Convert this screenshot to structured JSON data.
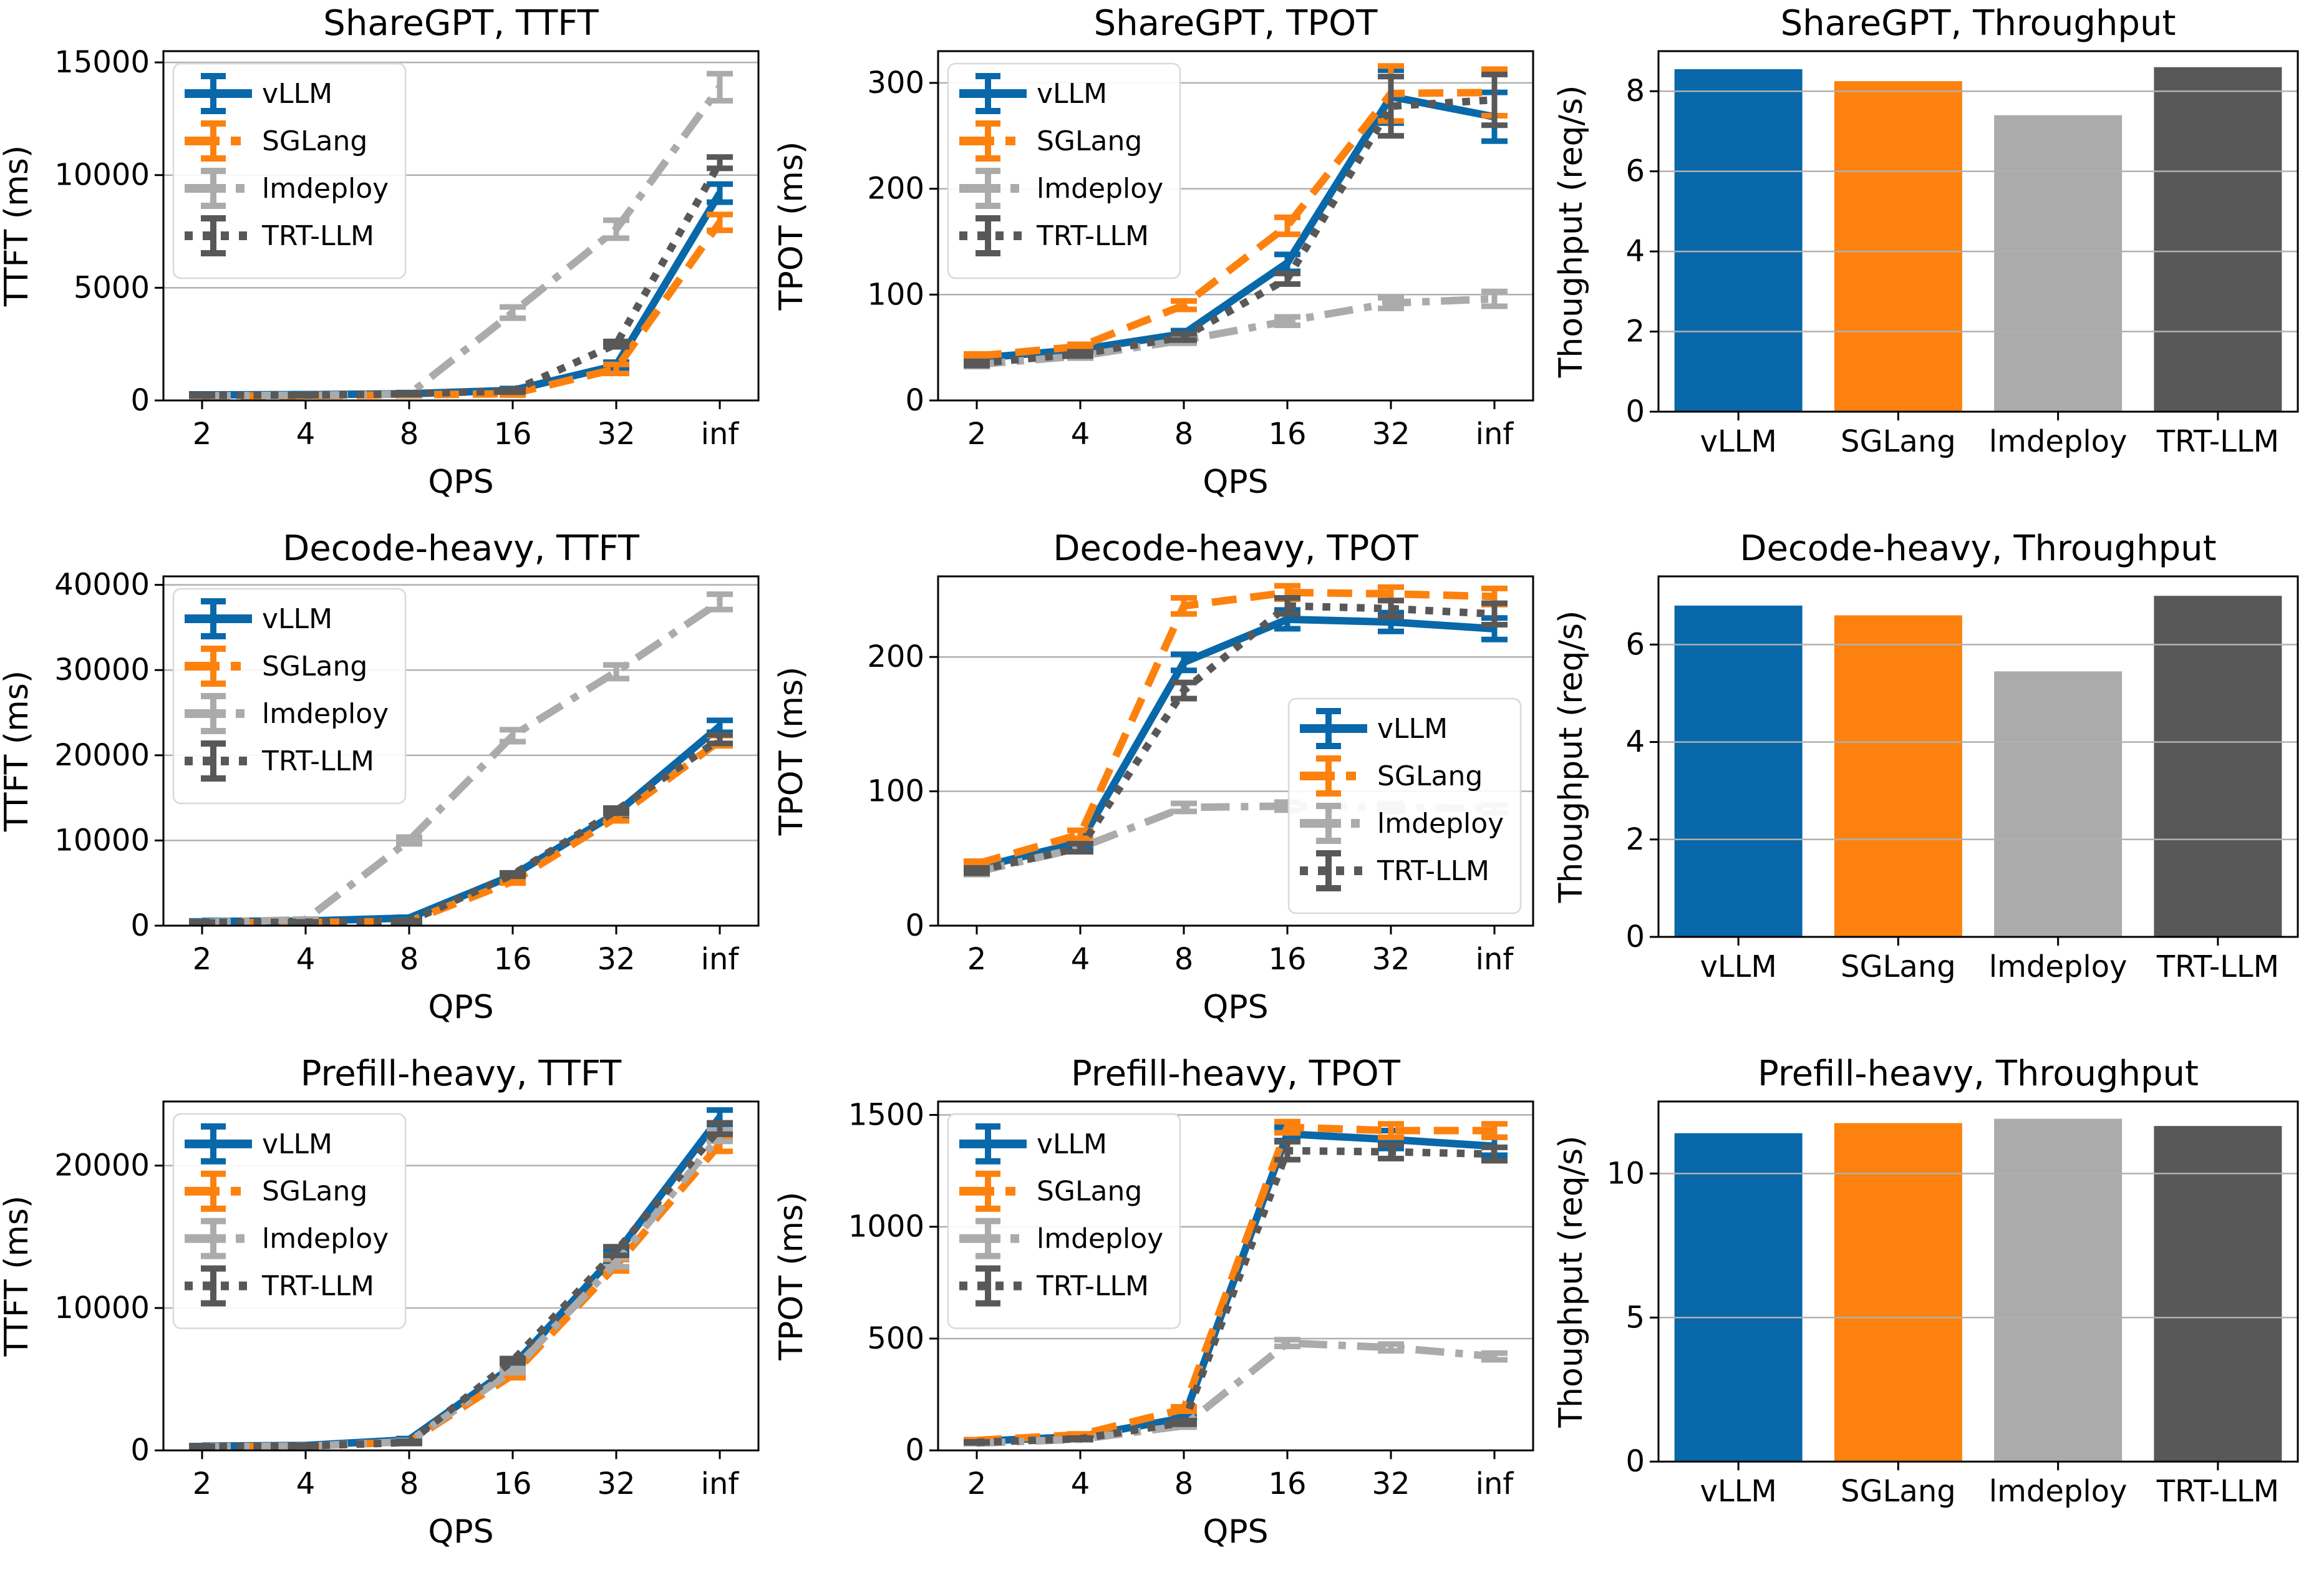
{
  "figure": {
    "background": "#ffffff",
    "x_axis_label": "QPS",
    "x_tick_labels": [
      "2",
      "4",
      "8",
      "16",
      "32",
      "inf"
    ],
    "frameworks": [
      {
        "name": "vLLM",
        "color": "#0868a9",
        "linestyle": "solid"
      },
      {
        "name": "SGLang",
        "color": "#fd810e",
        "linestyle": "dashed"
      },
      {
        "name": "lmdeploy",
        "color": "#ababab",
        "linestyle": "dashdot"
      },
      {
        "name": "TRT-LLM",
        "color": "#585858",
        "linestyle": "dotted"
      }
    ],
    "grid_color": "#b0b0b0",
    "spine_color": "#000000"
  },
  "chart_data": [
    {
      "type": "line",
      "title": "ShareGPT, TTFT",
      "xlabel": "QPS",
      "ylabel": "TTFT (ms)",
      "x": [
        "2",
        "4",
        "8",
        "16",
        "32",
        "inf"
      ],
      "yticks": [
        0,
        5000,
        10000,
        15000
      ],
      "ylim": [
        0,
        15500
      ],
      "grid": true,
      "legend_loc": "upper-left",
      "series": [
        {
          "name": "vLLM",
          "color": "#0868a9",
          "linestyle": "solid",
          "values": [
            250,
            260,
            300,
            450,
            1550,
            9200
          ],
          "err": [
            40,
            40,
            50,
            80,
            150,
            400
          ]
        },
        {
          "name": "SGLang",
          "color": "#fd810e",
          "linestyle": "dashed",
          "values": [
            200,
            210,
            250,
            300,
            1400,
            7900
          ],
          "err": [
            30,
            30,
            40,
            60,
            200,
            350
          ]
        },
        {
          "name": "lmdeploy",
          "color": "#ababab",
          "linestyle": "dashdot",
          "values": [
            210,
            230,
            280,
            3900,
            7600,
            13900
          ],
          "err": [
            30,
            30,
            40,
            250,
            400,
            600
          ]
        },
        {
          "name": "TRT-LLM",
          "color": "#585858",
          "linestyle": "dotted",
          "values": [
            230,
            240,
            300,
            430,
            2500,
            10550
          ],
          "err": [
            30,
            30,
            40,
            60,
            120,
            250
          ]
        }
      ]
    },
    {
      "type": "line",
      "title": "ShareGPT, TPOT",
      "xlabel": "QPS",
      "ylabel": "TPOT (ms)",
      "x": [
        "2",
        "4",
        "8",
        "16",
        "32",
        "inf"
      ],
      "yticks": [
        0,
        100,
        200,
        300
      ],
      "ylim": [
        0,
        330
      ],
      "grid": true,
      "legend_loc": "upper-left",
      "series": [
        {
          "name": "vLLM",
          "color": "#0868a9",
          "linestyle": "solid",
          "values": [
            40,
            48,
            63,
            130,
            287,
            268
          ],
          "err": [
            2,
            2,
            3,
            8,
            25,
            23
          ]
        },
        {
          "name": "SGLang",
          "color": "#fd810e",
          "linestyle": "dashed",
          "values": [
            42,
            51,
            90,
            165,
            290,
            291
          ],
          "err": [
            2,
            2,
            4,
            8,
            26,
            22
          ]
        },
        {
          "name": "lmdeploy",
          "color": "#ababab",
          "linestyle": "dashdot",
          "values": [
            34,
            42,
            57,
            75,
            92,
            96
          ],
          "err": [
            2,
            2,
            3,
            4,
            5,
            7
          ]
        },
        {
          "name": "TRT-LLM",
          "color": "#585858",
          "linestyle": "dotted",
          "values": [
            35,
            44,
            60,
            115,
            278,
            284
          ],
          "err": [
            2,
            2,
            3,
            5,
            28,
            24
          ]
        }
      ]
    },
    {
      "type": "bar",
      "title": "ShareGPT, Throughput",
      "ylabel": "Thoughput (req/s)",
      "categories": [
        "vLLM",
        "SGLang",
        "lmdeploy",
        "TRT-LLM"
      ],
      "values": [
        8.55,
        8.25,
        7.4,
        8.6
      ],
      "bar_colors": [
        "#0868a9",
        "#fd810e",
        "#ababab",
        "#585858"
      ],
      "yticks": [
        0,
        2,
        4,
        6,
        8
      ],
      "ylim": [
        0,
        9
      ],
      "grid": true
    },
    {
      "type": "line",
      "title": "Decode-heavy, TTFT",
      "xlabel": "QPS",
      "ylabel": "TTFT (ms)",
      "x": [
        "2",
        "4",
        "8",
        "16",
        "32",
        "inf"
      ],
      "yticks": [
        0,
        10000,
        20000,
        30000,
        40000
      ],
      "ylim": [
        0,
        41000
      ],
      "grid": true,
      "legend_loc": "upper-left",
      "series": [
        {
          "name": "vLLM",
          "color": "#0868a9",
          "linestyle": "solid",
          "values": [
            500,
            550,
            900,
            5900,
            13200,
            23400
          ],
          "err": [
            60,
            60,
            90,
            200,
            300,
            700
          ]
        },
        {
          "name": "SGLang",
          "color": "#fd810e",
          "linestyle": "dashed",
          "values": [
            350,
            380,
            500,
            5200,
            12700,
            21700
          ],
          "err": [
            50,
            50,
            70,
            200,
            400,
            600
          ]
        },
        {
          "name": "lmdeploy",
          "color": "#ababab",
          "linestyle": "dashdot",
          "values": [
            400,
            700,
            10000,
            22300,
            29800,
            38000
          ],
          "err": [
            50,
            80,
            400,
            700,
            800,
            900
          ]
        },
        {
          "name": "TRT-LLM",
          "color": "#585858",
          "linestyle": "dotted",
          "values": [
            380,
            400,
            520,
            6000,
            13500,
            21900
          ],
          "err": [
            50,
            50,
            70,
            200,
            300,
            500
          ]
        }
      ]
    },
    {
      "type": "line",
      "title": "Decode-heavy, TPOT",
      "xlabel": "QPS",
      "ylabel": "TPOT (ms)",
      "x": [
        "2",
        "4",
        "8",
        "16",
        "32",
        "inf"
      ],
      "yticks": [
        0,
        100,
        200
      ],
      "ylim": [
        0,
        260
      ],
      "grid": true,
      "legend_loc": "center-right",
      "series": [
        {
          "name": "vLLM",
          "color": "#0868a9",
          "linestyle": "solid",
          "values": [
            43,
            62,
            196,
            228,
            226,
            221
          ],
          "err": [
            2,
            3,
            6,
            7,
            7,
            8
          ]
        },
        {
          "name": "SGLang",
          "color": "#fd810e",
          "linestyle": "dashed",
          "values": [
            46,
            68,
            238,
            248,
            247,
            245
          ],
          "err": [
            2,
            3,
            6,
            5,
            5,
            6
          ]
        },
        {
          "name": "lmdeploy",
          "color": "#ababab",
          "linestyle": "dashdot",
          "values": [
            40,
            58,
            88,
            89,
            88,
            87
          ],
          "err": [
            2,
            3,
            3,
            3,
            3,
            3
          ]
        },
        {
          "name": "TRT-LLM",
          "color": "#585858",
          "linestyle": "dotted",
          "values": [
            41,
            58,
            175,
            238,
            236,
            232
          ],
          "err": [
            2,
            3,
            6,
            6,
            6,
            8
          ]
        }
      ]
    },
    {
      "type": "bar",
      "title": "Decode-heavy, Throughput",
      "ylabel": "Thoughput (req/s)",
      "categories": [
        "vLLM",
        "SGLang",
        "lmdeploy",
        "TRT-LLM"
      ],
      "values": [
        6.8,
        6.6,
        5.45,
        7.0
      ],
      "bar_colors": [
        "#0868a9",
        "#fd810e",
        "#ababab",
        "#585858"
      ],
      "yticks": [
        0,
        2,
        4,
        6
      ],
      "ylim": [
        0,
        7.4
      ],
      "grid": true
    },
    {
      "type": "line",
      "title": "Prefill-heavy, TTFT",
      "xlabel": "QPS",
      "ylabel": "TTFT (ms)",
      "x": [
        "2",
        "4",
        "8",
        "16",
        "32",
        "inf"
      ],
      "yticks": [
        0,
        10000,
        20000
      ],
      "ylim": [
        0,
        24500
      ],
      "grid": true,
      "legend_loc": "upper-left",
      "series": [
        {
          "name": "vLLM",
          "color": "#0868a9",
          "linestyle": "solid",
          "values": [
            300,
            350,
            750,
            5900,
            13800,
            23400
          ],
          "err": [
            40,
            40,
            80,
            150,
            300,
            500
          ]
        },
        {
          "name": "SGLang",
          "color": "#fd810e",
          "linestyle": "dashed",
          "values": [
            250,
            300,
            600,
            5300,
            13000,
            21500
          ],
          "err": [
            40,
            40,
            80,
            200,
            400,
            500
          ]
        },
        {
          "name": "lmdeploy",
          "color": "#ababab",
          "linestyle": "dashdot",
          "values": [
            260,
            300,
            620,
            5600,
            13200,
            22100
          ],
          "err": [
            40,
            40,
            80,
            150,
            300,
            400
          ]
        },
        {
          "name": "TRT-LLM",
          "color": "#585858",
          "linestyle": "dotted",
          "values": [
            260,
            310,
            560,
            6300,
            14000,
            22600
          ],
          "err": [
            40,
            40,
            80,
            150,
            300,
            400
          ]
        }
      ]
    },
    {
      "type": "line",
      "title": "Prefill-heavy, TPOT",
      "xlabel": "QPS",
      "ylabel": "TPOT (ms)",
      "x": [
        "2",
        "4",
        "8",
        "16",
        "32",
        "inf"
      ],
      "yticks": [
        0,
        500,
        1000,
        1500
      ],
      "ylim": [
        0,
        1560
      ],
      "grid": true,
      "legend_loc": "upper-left",
      "series": [
        {
          "name": "vLLM",
          "color": "#0868a9",
          "linestyle": "solid",
          "values": [
            40,
            62,
            145,
            1415,
            1390,
            1360
          ],
          "err": [
            3,
            4,
            8,
            30,
            40,
            40
          ]
        },
        {
          "name": "SGLang",
          "color": "#fd810e",
          "linestyle": "dashed",
          "values": [
            45,
            70,
            185,
            1445,
            1430,
            1430
          ],
          "err": [
            3,
            4,
            10,
            25,
            30,
            30
          ]
        },
        {
          "name": "lmdeploy",
          "color": "#ababab",
          "linestyle": "dashdot",
          "values": [
            32,
            50,
            110,
            480,
            460,
            420
          ],
          "err": [
            2,
            3,
            6,
            15,
            15,
            15
          ]
        },
        {
          "name": "TRT-LLM",
          "color": "#585858",
          "linestyle": "dotted",
          "values": [
            36,
            52,
            125,
            1340,
            1335,
            1325
          ],
          "err": [
            2,
            3,
            8,
            40,
            30,
            30
          ]
        }
      ]
    },
    {
      "type": "bar",
      "title": "Prefill-heavy, Throughput",
      "ylabel": "Thoughput (req/s)",
      "categories": [
        "vLLM",
        "SGLang",
        "lmdeploy",
        "TRT-LLM"
      ],
      "values": [
        11.4,
        11.75,
        11.9,
        11.65
      ],
      "bar_colors": [
        "#0868a9",
        "#fd810e",
        "#ababab",
        "#585858"
      ],
      "yticks": [
        0,
        5,
        10
      ],
      "ylim": [
        0,
        12.5
      ],
      "grid": true
    }
  ]
}
